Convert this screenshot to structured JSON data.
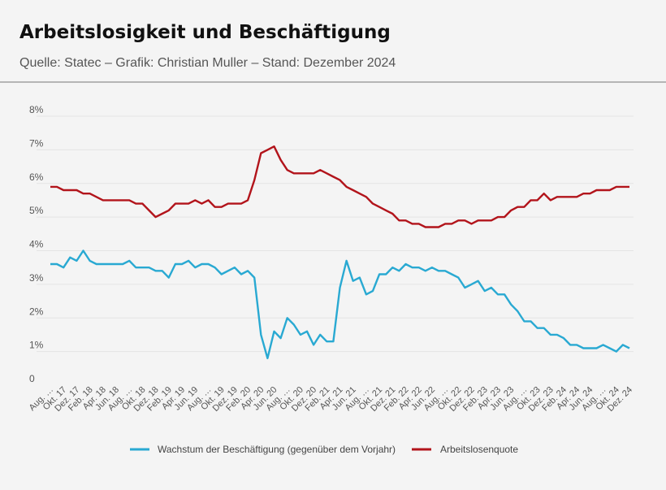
{
  "header": {
    "title": "Arbeitslosigkeit und Beschäftigung",
    "subtitle": "Quelle: Statec – Grafik: Christian Muller – Stand: Dezember 2024"
  },
  "chart_data": {
    "type": "line",
    "title": "Arbeitslosigkeit und Beschäftigung",
    "xlabel": "",
    "ylabel": "",
    "ylim": [
      0,
      8
    ],
    "y_ticks": [
      "0",
      "1%",
      "2%",
      "3%",
      "4%",
      "5%",
      "6%",
      "7%",
      "8%"
    ],
    "grid": true,
    "legend_placement": "bottom",
    "x_start": "Aug. 2017",
    "x_end": "Dez. 2024",
    "x_frequency": "monthly",
    "x_tick_labels": [
      "Aug. …",
      "Okt. 17",
      "Dez. 17",
      "Feb. 18",
      "Apr. 18",
      "Jun. 18",
      "Aug. …",
      "Okt. 18",
      "Dez. 18",
      "Feb. 19",
      "Apr. 19",
      "Jun. 19",
      "Aug. …",
      "Okt. 19",
      "Dez. 19",
      "Feb. 20",
      "Apr. 20",
      "Jun. 20",
      "Aug. …",
      "Okt. 20",
      "Dez. 20",
      "Feb. 21",
      "Apr. 21",
      "Jun. 21",
      "Aug. …",
      "Okt. 21",
      "Dez. 21",
      "Feb. 22",
      "Apr. 22",
      "Jun. 22",
      "Aug. …",
      "Okt. 22",
      "Dez. 22",
      "Feb. 23",
      "Apr. 23",
      "Jun. 23",
      "Aug. …",
      "Okt. 23",
      "Dez. 23",
      "Feb. 24",
      "Apr. 24",
      "Jun. 24",
      "Aug. …",
      "Okt. 24",
      "Dez. 24"
    ],
    "series": [
      {
        "name": "Wachstum der Beschäftigung (gegenüber dem Vorjahr)",
        "color": "#29a9d2",
        "values": [
          3.6,
          3.6,
          3.5,
          3.8,
          3.7,
          4.0,
          3.7,
          3.6,
          3.6,
          3.6,
          3.6,
          3.6,
          3.7,
          3.5,
          3.5,
          3.5,
          3.4,
          3.4,
          3.2,
          3.6,
          3.6,
          3.7,
          3.5,
          3.6,
          3.6,
          3.5,
          3.3,
          3.4,
          3.5,
          3.3,
          3.4,
          3.2,
          1.5,
          0.8,
          1.6,
          1.4,
          2.0,
          1.8,
          1.5,
          1.6,
          1.2,
          1.5,
          1.3,
          1.3,
          2.9,
          3.7,
          3.1,
          3.2,
          2.7,
          2.8,
          3.3,
          3.3,
          3.5,
          3.4,
          3.6,
          3.5,
          3.5,
          3.4,
          3.5,
          3.4,
          3.4,
          3.3,
          3.2,
          2.9,
          3.0,
          3.1,
          2.8,
          2.9,
          2.7,
          2.7,
          2.4,
          2.2,
          1.9,
          1.9,
          1.7,
          1.7,
          1.5,
          1.5,
          1.4,
          1.2,
          1.2,
          1.1,
          1.1,
          1.1,
          1.2,
          1.1,
          1.0,
          1.2,
          1.1
        ]
      },
      {
        "name": "Arbeitslosenquote",
        "color": "#b2141b",
        "values": [
          5.9,
          5.9,
          5.8,
          5.8,
          5.8,
          5.7,
          5.7,
          5.6,
          5.5,
          5.5,
          5.5,
          5.5,
          5.5,
          5.4,
          5.4,
          5.2,
          5.0,
          5.1,
          5.2,
          5.4,
          5.4,
          5.4,
          5.5,
          5.4,
          5.5,
          5.3,
          5.3,
          5.4,
          5.4,
          5.4,
          5.5,
          6.1,
          6.9,
          7.0,
          7.1,
          6.7,
          6.4,
          6.3,
          6.3,
          6.3,
          6.3,
          6.4,
          6.3,
          6.2,
          6.1,
          5.9,
          5.8,
          5.7,
          5.6,
          5.4,
          5.3,
          5.2,
          5.1,
          4.9,
          4.9,
          4.8,
          4.8,
          4.7,
          4.7,
          4.7,
          4.8,
          4.8,
          4.9,
          4.9,
          4.8,
          4.9,
          4.9,
          4.9,
          5.0,
          5.0,
          5.2,
          5.3,
          5.3,
          5.5,
          5.5,
          5.7,
          5.5,
          5.6,
          5.6,
          5.6,
          5.6,
          5.7,
          5.7,
          5.8,
          5.8,
          5.8,
          5.9,
          5.9,
          5.9
        ]
      }
    ]
  }
}
